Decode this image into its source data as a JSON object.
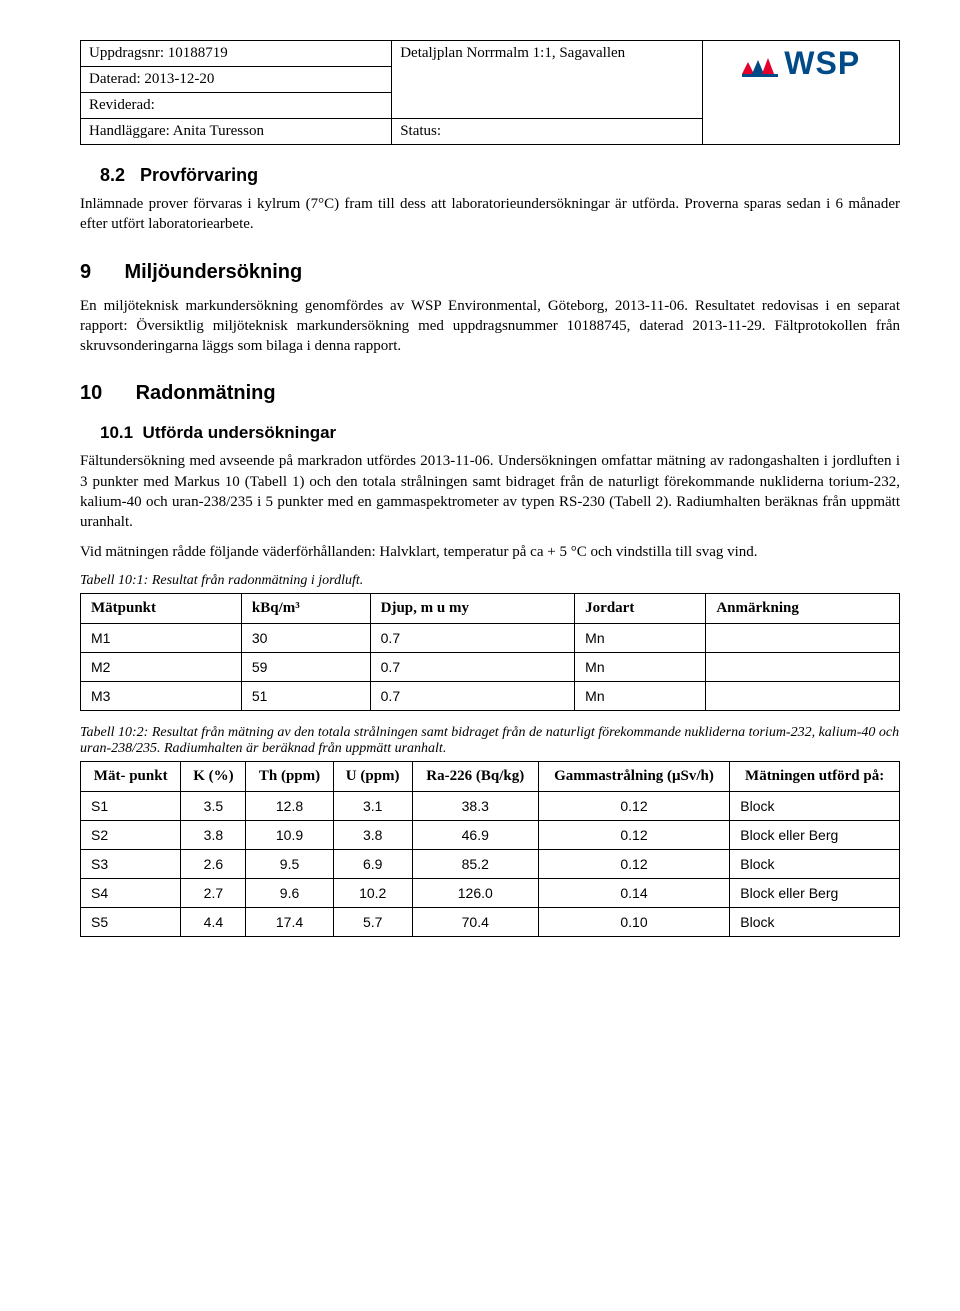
{
  "header": {
    "uppdragsnr_label": "Uppdragsnr: ",
    "uppdragsnr": "10188719",
    "daterad_label": "Daterad: ",
    "daterad": "2013-12-20",
    "reviderad_label": "Reviderad:",
    "handlaggare_label": "Handläggare: ",
    "handlaggare": "Anita Turesson",
    "detaljplan": "Detaljplan Norrmalm 1:1, Sagavallen",
    "status_label": "Status:",
    "logo_text": "WSP"
  },
  "sections": {
    "s82_num": "8.2",
    "s82_title": "Provförvaring",
    "s82_p": "Inlämnade prover förvaras i kylrum (7°C) fram till dess att laboratorieundersökningar är utförda. Proverna sparas sedan i 6 månader efter utfört laboratoriearbete.",
    "s9_num": "9",
    "s9_title": "Miljöundersökning",
    "s9_p": "En miljöteknisk markundersökning genomfördes av WSP Environmental, Göteborg, 2013-11-06. Resultatet redovisas i en separat rapport: Översiktlig miljöteknisk markundersökning med uppdragsnummer 10188745, daterad 2013-11-29. Fältprotokollen från skruvsonderingarna läggs som bilaga i denna rapport.",
    "s10_num": "10",
    "s10_title": "Radonmätning",
    "s101_num": "10.1",
    "s101_title": "Utförda undersökningar",
    "s101_p1": "Fältundersökning med avseende på markradon utfördes 2013-11-06. Undersökningen omfattar mätning av radongashalten i jordluften i 3 punkter med Markus 10 (Tabell 1) och den totala strålningen samt bidraget från de naturligt förekommande nukliderna torium-232, kalium-40 och uran-238/235 i 5 punkter med en gammaspektrometer av typen RS-230 (Tabell 2). Radiumhalten beräknas från uppmätt uranhalt.",
    "s101_p2": "Vid mätningen rådde följande väderförhållanden: Halvklart, temperatur på ca + 5 °C och vindstilla till svag vind."
  },
  "table1": {
    "caption": "Tabell 10:1: Resultat från radonmätning i jordluft.",
    "headers": [
      "Mätpunkt",
      "kBq/m³",
      "Djup, m u my",
      "Jordart",
      "Anmärkning"
    ],
    "rows": [
      [
        "M1",
        "30",
        "0.7",
        "Mn",
        ""
      ],
      [
        "M2",
        "59",
        "0.7",
        "Mn",
        ""
      ],
      [
        "M3",
        "51",
        "0.7",
        "Mn",
        ""
      ]
    ]
  },
  "table2": {
    "caption": "Tabell 10:2: Resultat från mätning av den totala strålningen samt bidraget från de naturligt förekommande nukliderna torium-232, kalium-40 och uran-238/235. Radiumhalten är beräknad från uppmätt uranhalt.",
    "headers": [
      "Mät-\npunkt",
      "K (%)",
      "Th\n(ppm)",
      "U\n(ppm)",
      "Ra-226\n(Bq/kg)",
      "Gammastrålning\n(μSv/h)",
      "Mätningen\nutförd på:"
    ],
    "rows": [
      [
        "S1",
        "3.5",
        "12.8",
        "3.1",
        "38.3",
        "0.12",
        "Block"
      ],
      [
        "S2",
        "3.8",
        "10.9",
        "3.8",
        "46.9",
        "0.12",
        "Block eller Berg"
      ],
      [
        "S3",
        "2.6",
        "9.5",
        "6.9",
        "85.2",
        "0.12",
        "Block"
      ],
      [
        "S4",
        "2.7",
        "9.6",
        "10.2",
        "126.0",
        "0.14",
        "Block eller Berg"
      ],
      [
        "S5",
        "4.4",
        "17.4",
        "5.7",
        "70.4",
        "0.10",
        "Block"
      ]
    ]
  }
}
